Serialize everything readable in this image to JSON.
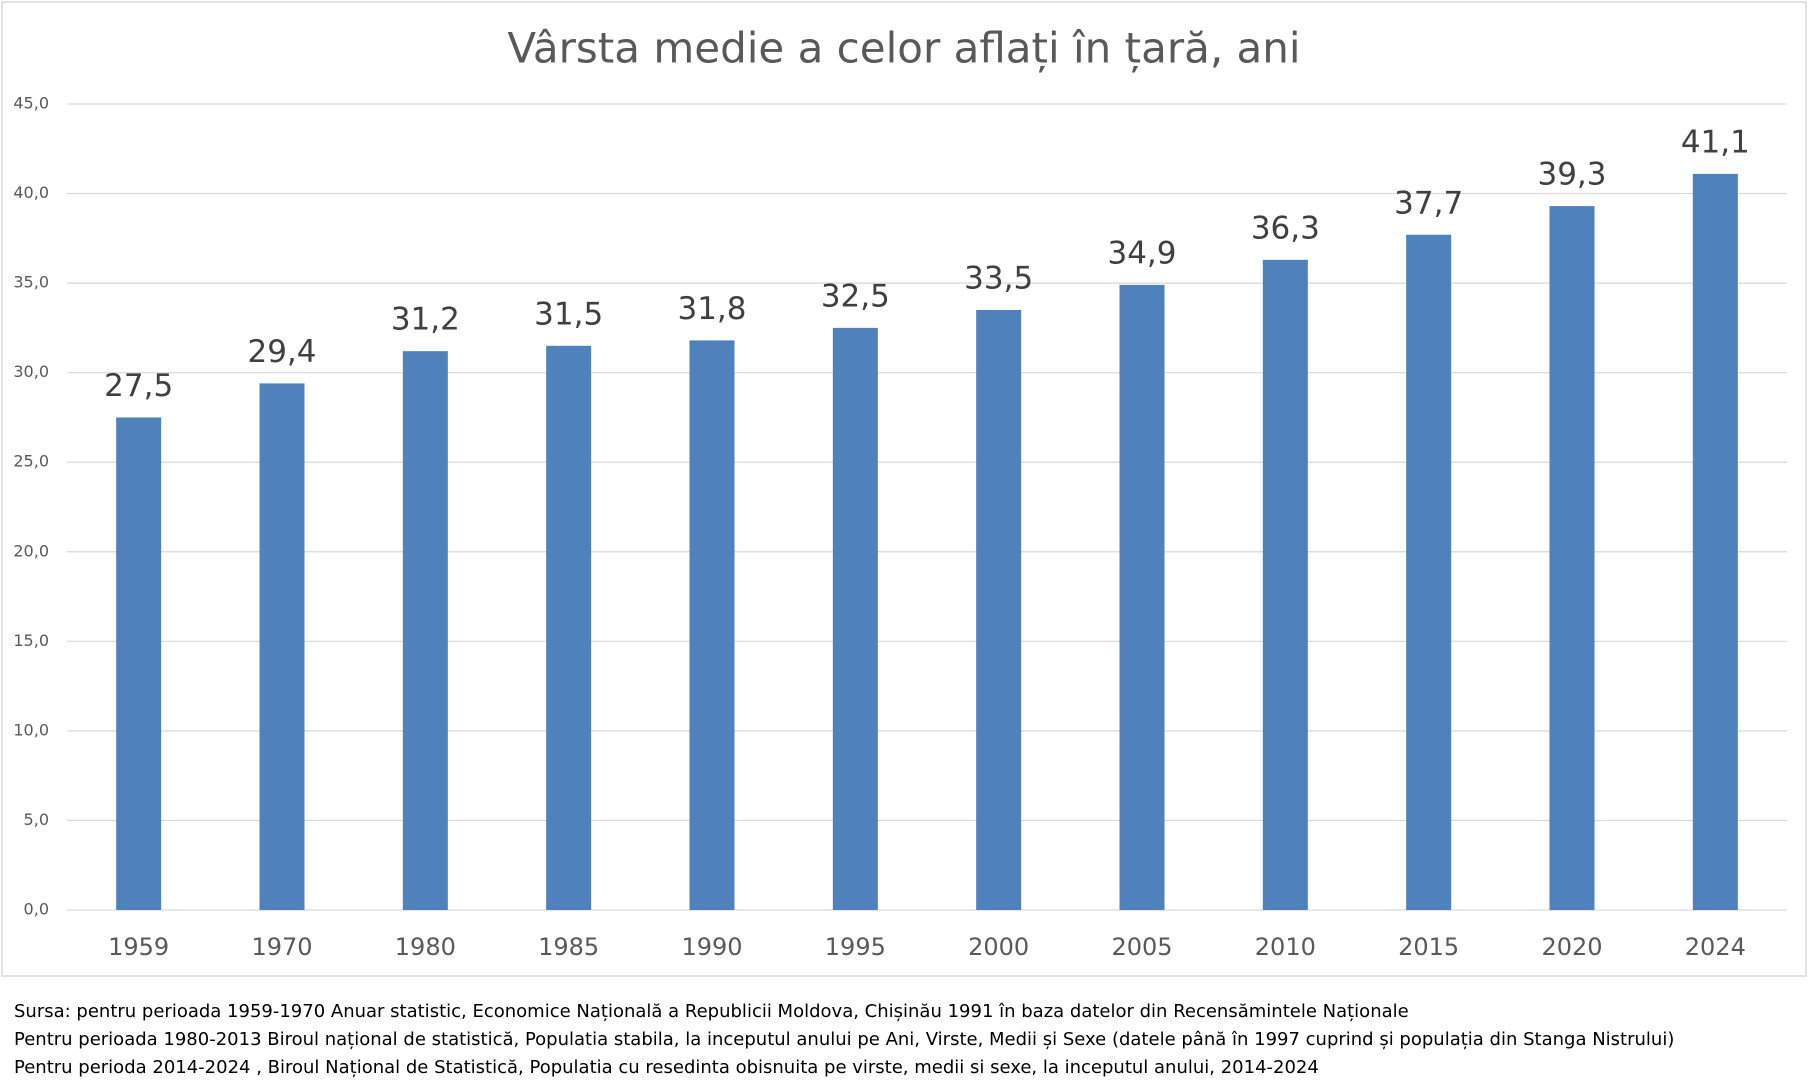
{
  "chart_data": {
    "type": "bar",
    "title": "Vârsta medie a celor aflați în țară, ani",
    "categories": [
      "1959",
      "1970",
      "1980",
      "1985",
      "1990",
      "1995",
      "2000",
      "2005",
      "2010",
      "2015",
      "2020",
      "2024"
    ],
    "values": [
      27.5,
      29.4,
      31.2,
      31.5,
      31.8,
      32.5,
      33.5,
      34.9,
      36.3,
      37.7,
      39.3,
      41.1
    ],
    "value_labels": [
      "27,5",
      "29,4",
      "31,2",
      "31,5",
      "31,8",
      "32,5",
      "33,5",
      "34,9",
      "36,3",
      "37,7",
      "39,3",
      "41,1"
    ],
    "color": "#4f81bd",
    "ylim": [
      0,
      45
    ],
    "yticks": [
      {
        "value": 0,
        "label": "0,0"
      },
      {
        "value": 5,
        "label": "5,0"
      },
      {
        "value": 10,
        "label": "10,0"
      },
      {
        "value": 15,
        "label": "15,0"
      },
      {
        "value": 20,
        "label": "20,0"
      },
      {
        "value": 25,
        "label": "25,0"
      },
      {
        "value": 30,
        "label": "30,0"
      },
      {
        "value": 35,
        "label": "35,0"
      },
      {
        "value": 40,
        "label": "40,0"
      },
      {
        "value": 45,
        "label": "45,0"
      }
    ],
    "grid": true,
    "notes": [
      "Sursa: pentru perioada 1959-1970 Anuar statistic, Economice Națională a Republicii  Moldova, Chișinău 1991 în baza datelor din Recensămintele Naționale",
      "Pentru perioada 1980-2013 Biroul național de statistică, Populatia stabila, la inceputul anului pe Ani, Virste, Medii și Sexe (datele până în 1997 cuprind și populația din Stanga Nistrului)",
      "Pentru perioda 2014-2024 , Biroul Național de Statistică, Populatia cu resedinta obisnuita pe virste, medii si sexe, la inceputul anului, 2014-2024"
    ]
  }
}
